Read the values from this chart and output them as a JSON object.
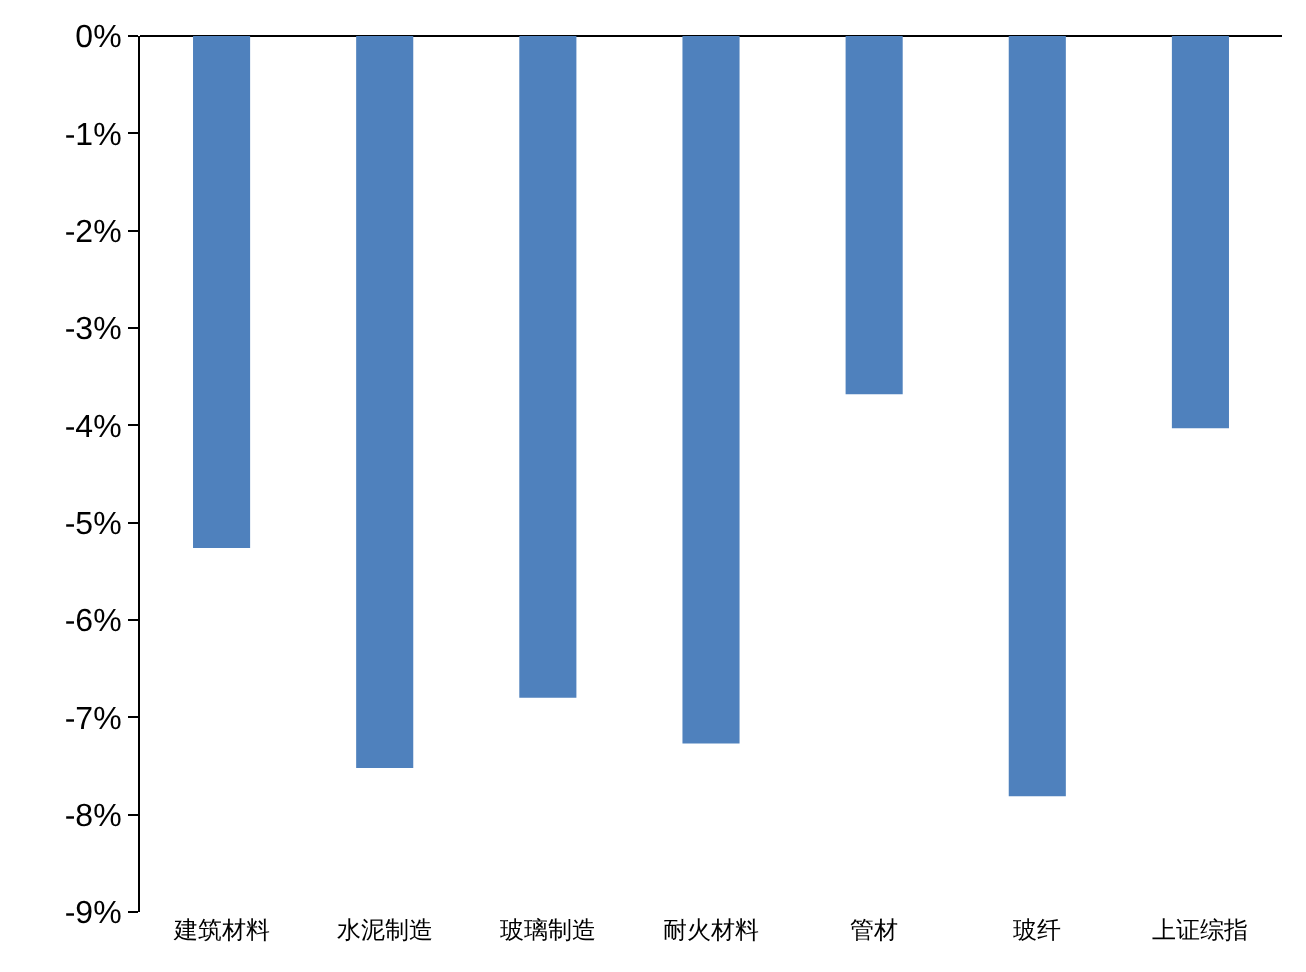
{
  "chart_data": {
    "type": "bar",
    "categories": [
      "建筑材料",
      "水泥制造",
      "玻璃制造",
      "耐火材料",
      "管材",
      "玻纤",
      "上证综指"
    ],
    "values": [
      -5.26,
      -7.52,
      -6.8,
      -7.27,
      -3.68,
      -7.81,
      -4.03
    ],
    "color": "#4f81bd",
    "ylim": [
      -9,
      0
    ],
    "yticks": [
      {
        "value": 0,
        "label": "0%"
      },
      {
        "value": -1,
        "label": "-1%"
      },
      {
        "value": -2,
        "label": "-2%"
      },
      {
        "value": -3,
        "label": "-3%"
      },
      {
        "value": -4,
        "label": "-4%"
      },
      {
        "value": -5,
        "label": "-5%"
      },
      {
        "value": -6,
        "label": "-6%"
      },
      {
        "value": -7,
        "label": "-7%"
      },
      {
        "value": -8,
        "label": "-8%"
      },
      {
        "value": -9,
        "label": "-9%"
      }
    ],
    "grid": false
  }
}
